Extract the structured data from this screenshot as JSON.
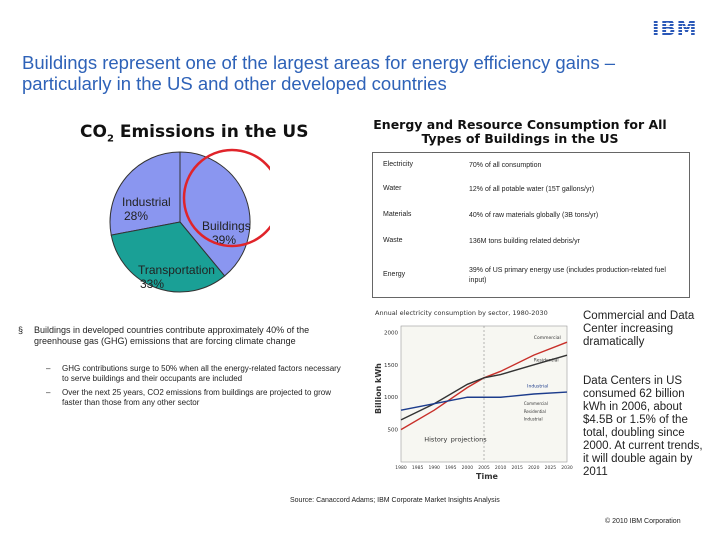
{
  "header": {
    "logo": "IBM",
    "title": "Buildings represent one of the largest areas for energy efficiency gains – particularly in the US and other developed countries"
  },
  "co2_chart": {
    "title_prefix": "CO",
    "title_sub": "2",
    "title_suffix": " Emissions in the US",
    "chart_data": {
      "type": "pie",
      "title": "CO2 Emissions in the US",
      "slices": [
        {
          "label": "Industrial",
          "value": 28,
          "value_label": "28%",
          "color": "#8a96f0"
        },
        {
          "label": "Buildings",
          "value": 39,
          "value_label": "39%",
          "color": "#8a96f0"
        },
        {
          "label": "Transportation",
          "value": 33,
          "value_label": "33%",
          "color": "#1aa096"
        }
      ],
      "highlight_color": "#e0242a"
    }
  },
  "resource_table": {
    "title": "Energy and Resource Consumption for All Types of Buildings in the US",
    "rows": [
      {
        "key": "Electricity",
        "value": "70% of all consumption"
      },
      {
        "key": "Water",
        "value": "12% of all potable water (15T gallons/yr)"
      },
      {
        "key": "Materials",
        "value": "40% of raw materials globally (3B tons/yr)"
      },
      {
        "key": "Waste",
        "value": "136M tons building related debris/yr"
      },
      {
        "key": "Energy",
        "value": "39% of US primary energy use (includes production-related fuel input)"
      }
    ]
  },
  "bullets": {
    "marker": "§",
    "main": "Buildings in developed countries contribute approximately 40% of the greenhouse gas (GHG) emissions that are forcing climate change",
    "subs": [
      {
        "dash": "–",
        "text": "GHG contributions surge to 50% when all the energy-related factors necessary to serve buildings and their occupants are included"
      },
      {
        "dash": "–",
        "text": "Over the next 25 years, CO2 emissions from buildings are projected to grow faster than those from any other sector"
      }
    ]
  },
  "line_chart": {
    "chart_data": {
      "type": "line",
      "title": "Annual electricity consumption by sector, 1980-2030",
      "xlabel": "Time",
      "ylabel": "Billion kWh",
      "ylim": [
        0,
        2100
      ],
      "y_ticks": [
        "2000",
        "1500",
        "1000",
        "500"
      ],
      "x_ticks": [
        "1980",
        "1985",
        "1990",
        "1995",
        "2000",
        "2005",
        "2010",
        "2015",
        "2020",
        "2025",
        "2030"
      ],
      "annotations": [
        "History",
        "projections",
        "Commercial",
        "Residential",
        "Industrial",
        "Commercial",
        "Residential",
        "Industrial"
      ],
      "series": [
        {
          "name": "Commercial",
          "color": "#c8302a",
          "x": [
            1980,
            1990,
            2000,
            2005,
            2010,
            2020,
            2030
          ],
          "values": [
            500,
            800,
            1150,
            1300,
            1400,
            1650,
            1850
          ]
        },
        {
          "name": "Residential",
          "color": "#333333",
          "x": [
            1980,
            1990,
            2000,
            2005,
            2010,
            2020,
            2030
          ],
          "values": [
            650,
            900,
            1200,
            1300,
            1350,
            1500,
            1650
          ]
        },
        {
          "name": "Industrial",
          "color": "#1c3c8c",
          "x": [
            1980,
            1990,
            2000,
            2005,
            2010,
            2020,
            2030
          ],
          "values": [
            800,
            900,
            1000,
            1000,
            1000,
            1050,
            1080
          ]
        }
      ]
    }
  },
  "side_notes": {
    "note1": "Commercial and Data Center increasing dramatically",
    "note2": "Data Centers in US consumed 62 billion kWh in 2006, about $4.5B or 1.5% of the total, doubling since 2000. At current trends, it will double again by 2011"
  },
  "footer": {
    "source": "Source: Canaccord Adams; IBM Corporate Market Insights Analysis",
    "copyright": "© 2010 IBM Corporation"
  }
}
